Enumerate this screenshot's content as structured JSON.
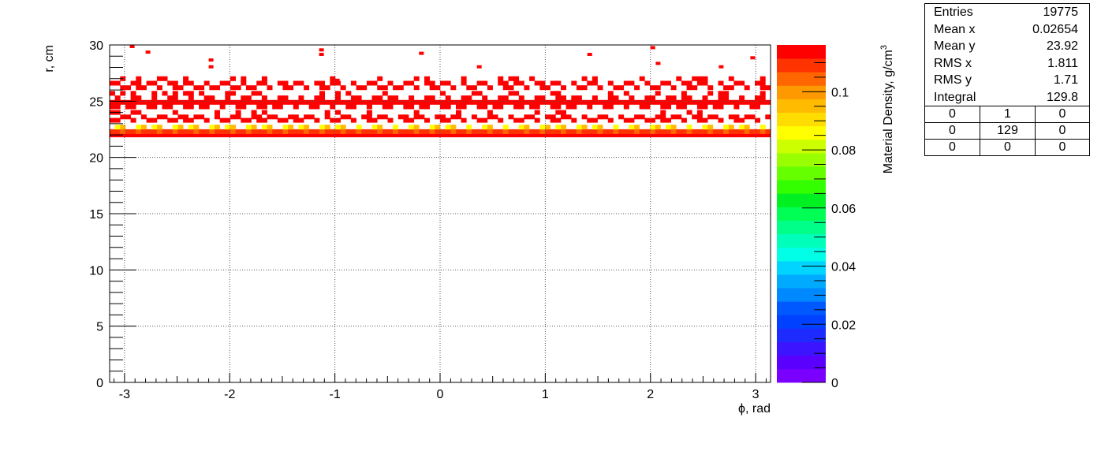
{
  "chart_data": {
    "type": "heatmap",
    "xlabel": "ϕ, rad",
    "ylabel": "r, cm",
    "zlabel": "Material Density, g/cm",
    "zlabel_superscript": "3",
    "xlim": [
      -3.1416,
      3.1416
    ],
    "ylim": [
      0,
      30
    ],
    "zlim": [
      0,
      0.1161
    ],
    "x_ticks": [
      "-3",
      "-2",
      "-1",
      "0",
      "1",
      "2",
      "3"
    ],
    "y_ticks": [
      "0",
      "5",
      "10",
      "15",
      "20",
      "25",
      "30"
    ],
    "z_ticks": [
      "0",
      "0.02",
      "0.04",
      "0.06",
      "0.08",
      "0.1"
    ],
    "grid": true,
    "palette": [
      "#7a00ff",
      "#5a00ff",
      "#3c14ff",
      "#1e2bff",
      "#0040ff",
      "#0059ff",
      "#0088ff",
      "#00aaff",
      "#00d4ff",
      "#00ffe6",
      "#00ffbb",
      "#00ff88",
      "#00ff55",
      "#00f022",
      "#33ff00",
      "#66ff00",
      "#99ff00",
      "#ccff00",
      "#ffff00",
      "#ffdd00",
      "#ffbb00",
      "#ff9900",
      "#ff6600",
      "#ff3300",
      "#ff0000"
    ],
    "layers": [
      {
        "r": 22.0,
        "density": 0.113,
        "coverage": "continuous"
      },
      {
        "r": 22.3,
        "density": 0.11,
        "coverage": "continuous"
      },
      {
        "r": 22.7,
        "density": 0.092,
        "coverage": "periodic"
      },
      {
        "r": 23.3,
        "density": 0.113,
        "coverage": "periodic"
      },
      {
        "r": 23.6,
        "density": 0.113,
        "coverage": "periodic"
      },
      {
        "r": 24.0,
        "density": 0.113,
        "coverage": "sparse"
      },
      {
        "r": 24.5,
        "density": 0.113,
        "coverage": "periodic"
      },
      {
        "r": 24.9,
        "density": 0.113,
        "coverage": "continuous"
      },
      {
        "r": 25.3,
        "density": 0.113,
        "coverage": "periodic"
      },
      {
        "r": 25.7,
        "density": 0.113,
        "coverage": "sparse"
      },
      {
        "r": 26.2,
        "density": 0.113,
        "coverage": "periodic"
      },
      {
        "r": 26.6,
        "density": 0.113,
        "coverage": "periodic"
      },
      {
        "r": 27.0,
        "density": 0.113,
        "coverage": "sparse"
      }
    ],
    "outliers": [
      {
        "x": -2.95,
        "r": 29.8
      },
      {
        "x": -2.8,
        "r": 29.3
      },
      {
        "x": -2.2,
        "r": 28.6
      },
      {
        "x": -1.15,
        "r": 29.1
      },
      {
        "x": -1.15,
        "r": 29.5
      },
      {
        "x": -0.2,
        "r": 29.2
      },
      {
        "x": 1.4,
        "r": 29.1
      },
      {
        "x": 2.0,
        "r": 29.7
      },
      {
        "x": 2.05,
        "r": 28.3
      },
      {
        "x": 2.95,
        "r": 28.8
      },
      {
        "x": -2.2,
        "r": 28.0
      },
      {
        "x": 0.35,
        "r": 28.0
      },
      {
        "x": 2.65,
        "r": 28.0
      },
      {
        "x": -1.0,
        "r": 26.8
      }
    ]
  },
  "stats": {
    "rows": [
      {
        "label": "Entries",
        "value": "19775"
      },
      {
        "label": "Mean x",
        "value": "0.02654"
      },
      {
        "label": "Mean y",
        "value": "23.92"
      },
      {
        "label": "RMS x",
        "value": "1.811"
      },
      {
        "label": "RMS y",
        "value": "1.71"
      },
      {
        "label": "Integral",
        "value": "129.8"
      }
    ],
    "grid": [
      [
        "0",
        "1",
        "0"
      ],
      [
        "0",
        "129",
        "0"
      ],
      [
        "0",
        "0",
        "0"
      ]
    ]
  }
}
